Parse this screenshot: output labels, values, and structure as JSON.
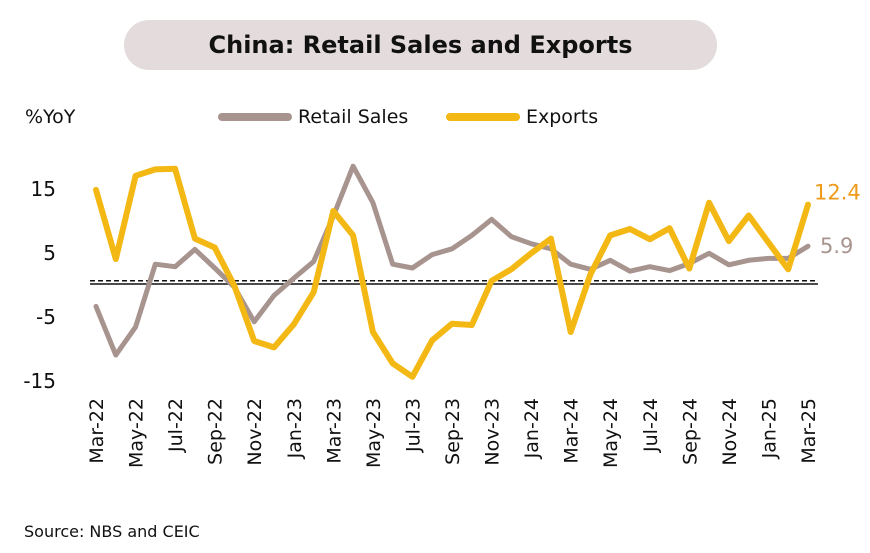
{
  "chart_data": {
    "type": "line",
    "title": "China: Retail Sales and Exports",
    "ylabel": "%YoY",
    "ylim": [
      -15,
      20
    ],
    "yticks": [
      -15,
      -5,
      5,
      15
    ],
    "grid": false,
    "legend_position": "top",
    "x": [
      "Mar-22",
      "Apr-22",
      "May-22",
      "Jun-22",
      "Jul-22",
      "Aug-22",
      "Sep-22",
      "Oct-22",
      "Nov-22",
      "Dec-22",
      "Jan-23",
      "Feb-23",
      "Mar-23",
      "Apr-23",
      "May-23",
      "Jun-23",
      "Jul-23",
      "Aug-23",
      "Sep-23",
      "Oct-23",
      "Nov-23",
      "Dec-23",
      "Jan-24",
      "Feb-24",
      "Mar-24",
      "Apr-24",
      "May-24",
      "Jun-24",
      "Jul-24",
      "Aug-24",
      "Sep-24",
      "Oct-24",
      "Nov-24",
      "Dec-24",
      "Jan-25",
      "Feb-25",
      "Mar-25"
    ],
    "xtick_labels": [
      "Mar-22",
      "May-22",
      "Jul-22",
      "Sep-22",
      "Nov-22",
      "Jan-23",
      "Mar-23",
      "May-23",
      "Jul-23",
      "Sep-23",
      "Nov-23",
      "Jan-24",
      "Mar-24",
      "May-24",
      "Jul-24",
      "Sep-24",
      "Nov-24",
      "Jan-25",
      "Mar-25"
    ],
    "series": [
      {
        "name": "Retail Sales",
        "color": "#a8948f",
        "values": [
          -3.5,
          -11.1,
          -6.7,
          3.1,
          2.7,
          5.4,
          2.5,
          -0.5,
          -5.9,
          -1.8,
          0.9,
          3.5,
          10.6,
          18.4,
          12.7,
          3.1,
          2.5,
          4.6,
          5.5,
          7.6,
          10.1,
          7.4,
          6.3,
          5.5,
          3.1,
          2.3,
          3.7,
          2.0,
          2.7,
          2.1,
          3.2,
          4.8,
          3.0,
          3.7,
          4.0,
          4.0,
          5.9
        ]
      },
      {
        "name": "Exports",
        "color": "#f3b814",
        "values": [
          14.7,
          3.9,
          16.9,
          17.9,
          18.0,
          7.1,
          5.7,
          -0.3,
          -8.9,
          -9.9,
          -6.3,
          -1.3,
          11.4,
          7.6,
          -7.5,
          -12.4,
          -14.5,
          -8.8,
          -6.2,
          -6.4,
          0.5,
          2.3,
          4.8,
          7.1,
          -7.5,
          1.5,
          7.6,
          8.6,
          7.0,
          8.7,
          2.4,
          12.7,
          6.7,
          10.7,
          6.5,
          2.3,
          12.4
        ]
      }
    ],
    "end_labels": {
      "retail": "5.9",
      "exports": "12.4"
    },
    "reference_lines": [
      {
        "value": 0,
        "style": "solid"
      },
      {
        "value": 0.5,
        "style": "dashed"
      }
    ],
    "source": "Source: NBS and CEIC"
  },
  "colors": {
    "title_bg": "#e4dcdc",
    "retail": "#a8948f",
    "exports": "#f3b814",
    "exports_label": "#ef9a1a"
  }
}
